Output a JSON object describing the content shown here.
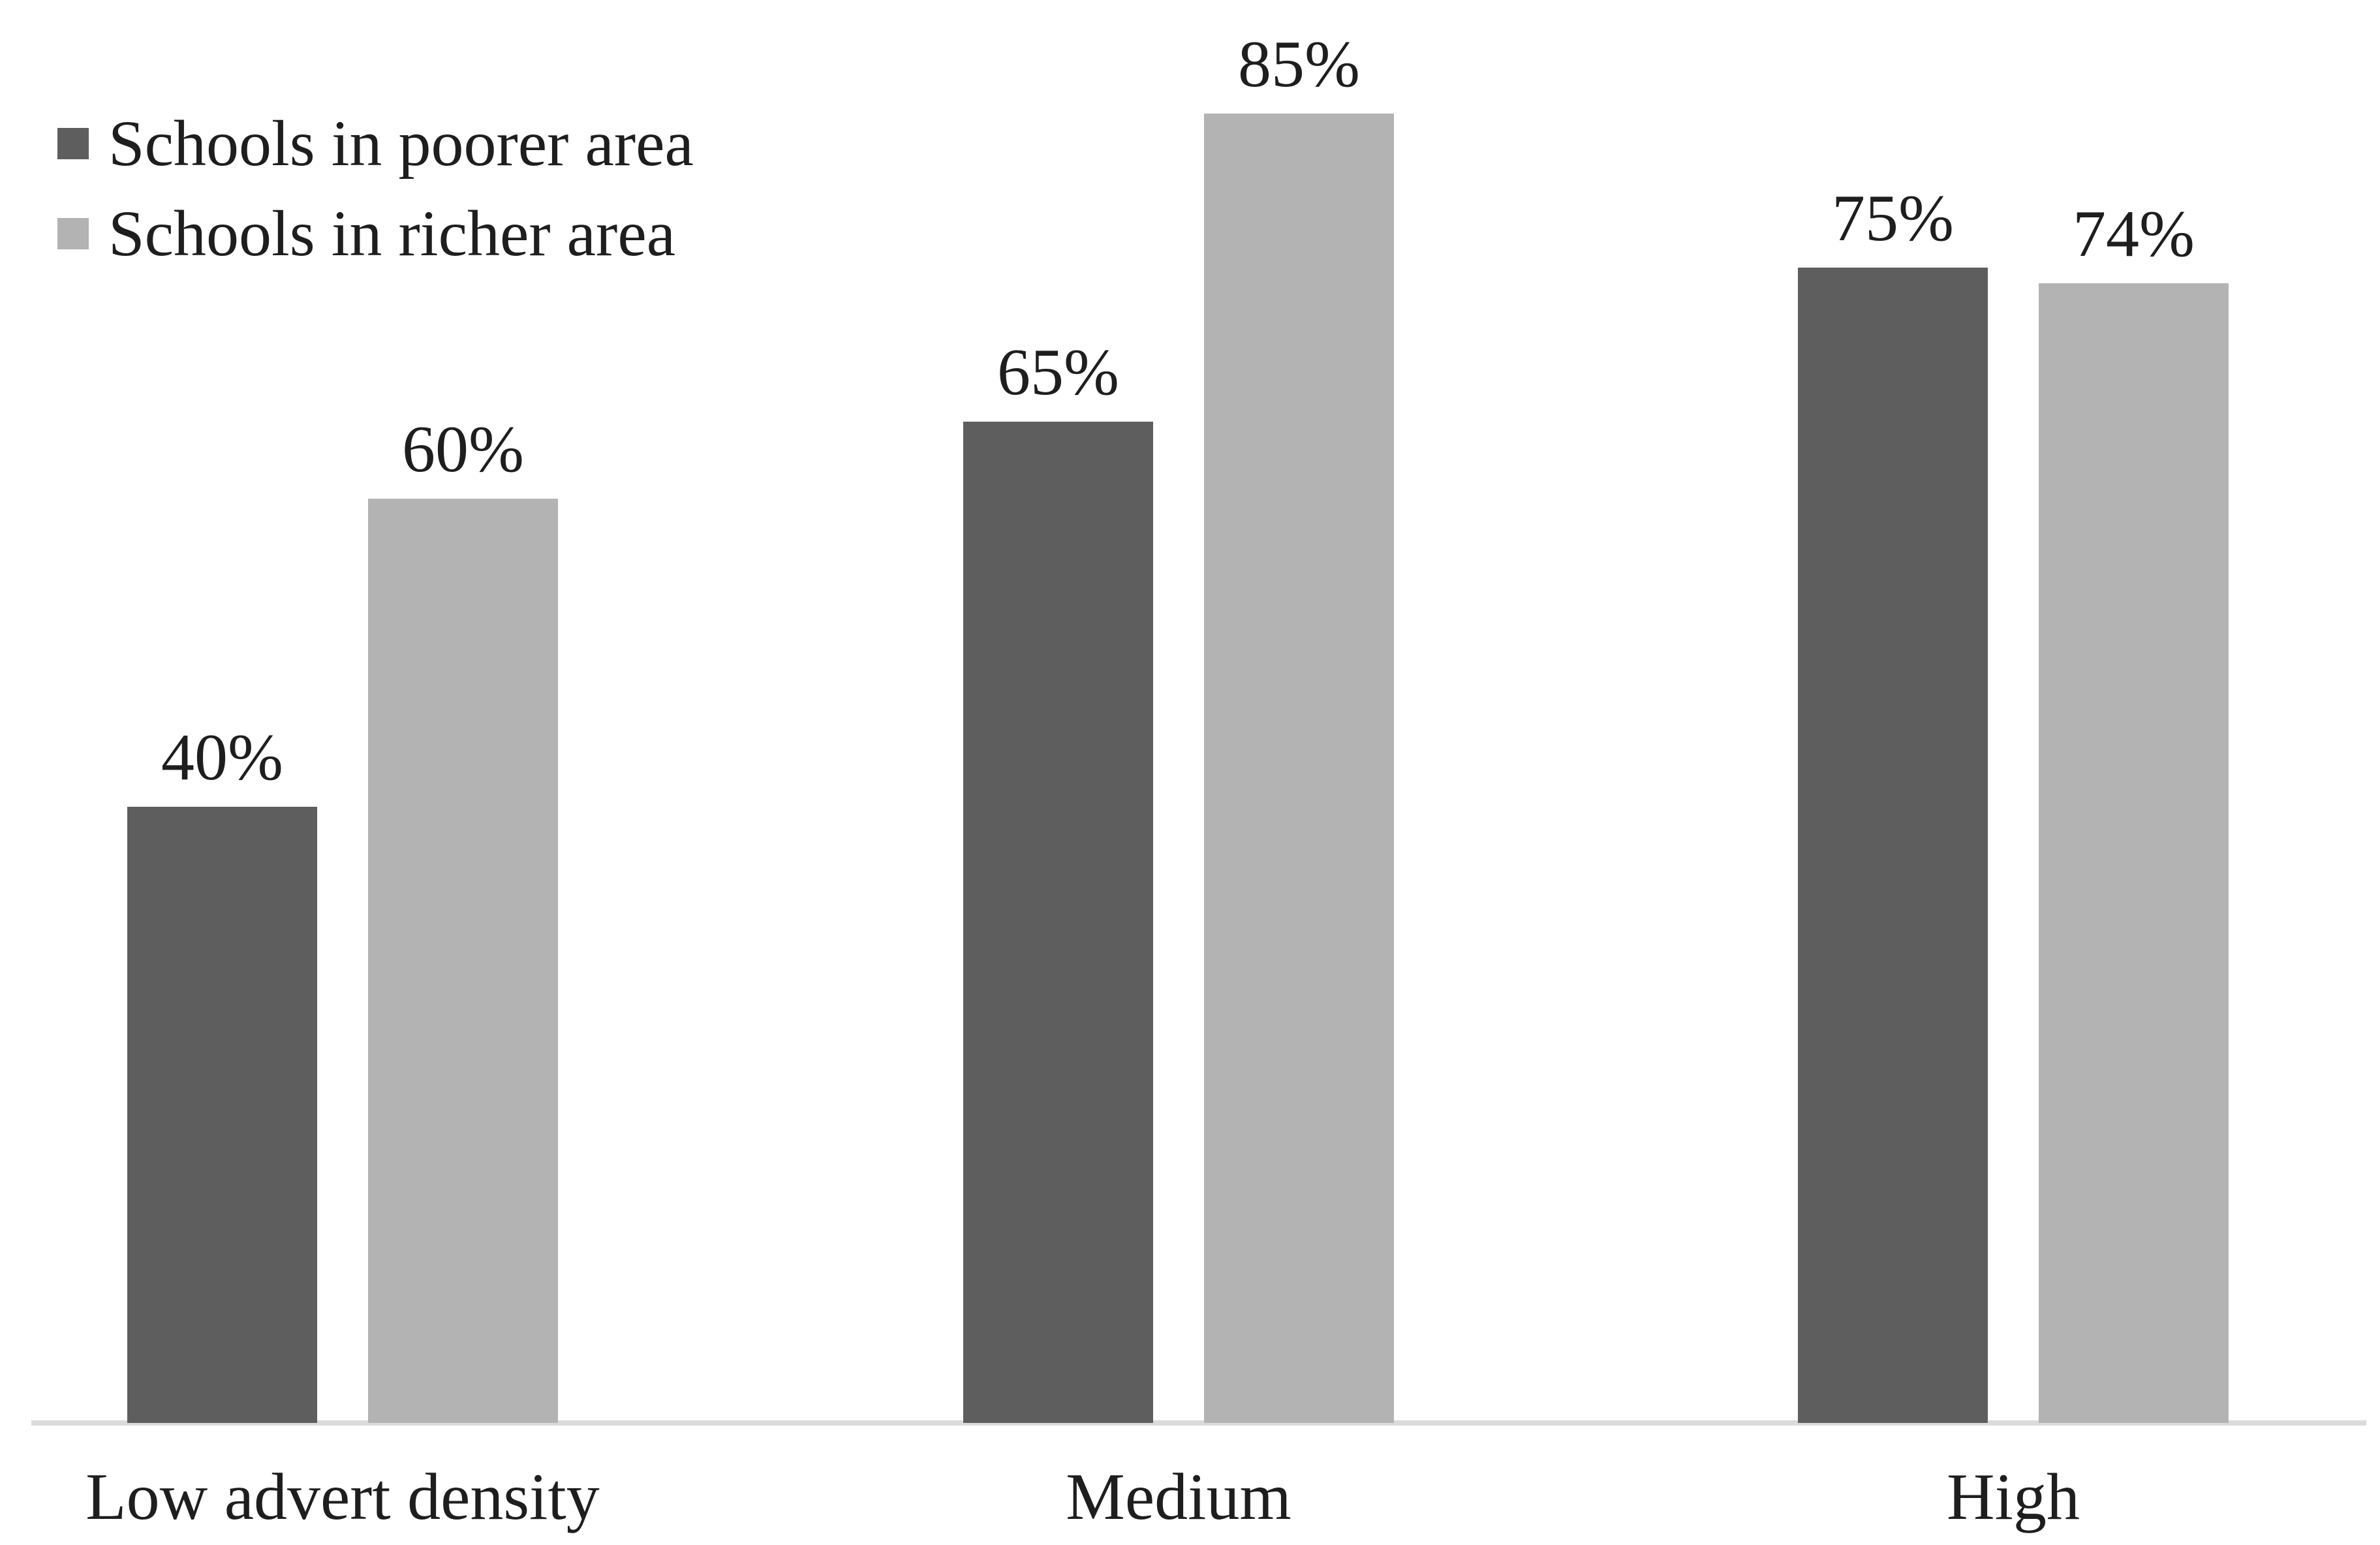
{
  "chart_data": {
    "type": "bar",
    "title": "",
    "xlabel": "",
    "ylabel": "",
    "categories": [
      "Low advert density",
      "Medium",
      "High"
    ],
    "series": [
      {
        "name": "Schools in poorer area",
        "color": "#5e5e5e",
        "values": [
          40,
          65,
          75
        ]
      },
      {
        "name": "Schools in richer area",
        "color": "#b3b3b3",
        "values": [
          60,
          85,
          74
        ]
      }
    ],
    "data_labels": [
      [
        "40%",
        "65%",
        "75%"
      ],
      [
        "60%",
        "85%",
        "74%"
      ]
    ],
    "value_suffix": "%",
    "ylim": [
      0,
      92
    ],
    "grid": false,
    "y_axis_visible": false,
    "legend_position": "top-left",
    "colors": {
      "bar_poorer": "#5e5e5e",
      "bar_richer": "#b3b3b3",
      "axis_line": "#dbdbdb",
      "text": "#1e1e1e",
      "background": "#ffffff"
    }
  }
}
